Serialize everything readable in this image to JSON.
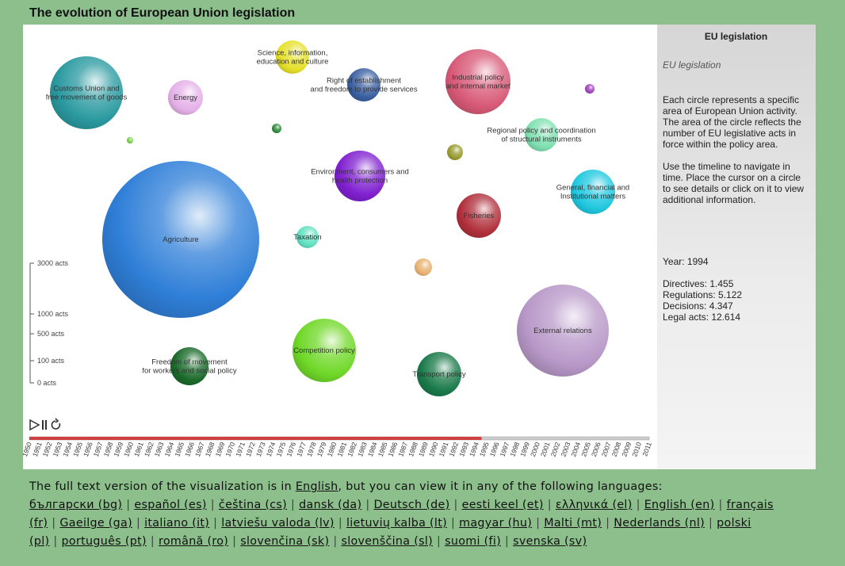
{
  "title": "The evolution of European Union legislation",
  "chart_data": {
    "type": "bubble",
    "year": 1994,
    "bubbles": [
      {
        "name": "Agriculture",
        "color": "#2f7fd8"
      },
      {
        "name": "Customs Union and free movement of goods",
        "color": "#2a9aa0"
      },
      {
        "name": "Energy",
        "color": "#e4b0e8"
      },
      {
        "name": "Science, information, education and culture",
        "color": "#e6e02a"
      },
      {
        "name": "Right of establishment and freedom to provide services",
        "color": "#3a5fa0"
      },
      {
        "name": "Industrial policy and internal market",
        "color": "#d85a78"
      },
      {
        "name": "Regional policy and coordination of structural instruments",
        "color": "#7fe0b0"
      },
      {
        "name": "Environment, consumers and health protection",
        "color": "#8020d0"
      },
      {
        "name": "Fisheries",
        "color": "#b0303c"
      },
      {
        "name": "General, financial and institutional matters",
        "color": "#20c8e0"
      },
      {
        "name": "Taxation",
        "color": "#60e0c0"
      },
      {
        "name": "Competition policy",
        "color": "#70d828"
      },
      {
        "name": "Freedom of movement for workers and social policy",
        "color": "#1a6a2a"
      },
      {
        "name": "Transport policy",
        "color": "#1a7a4a"
      },
      {
        "name": "External relations",
        "color": "#b898c8"
      },
      {
        "name": "",
        "color": "#a040c0"
      },
      {
        "name": "",
        "color": "#2a8a3a"
      },
      {
        "name": "",
        "color": "#70d040"
      },
      {
        "name": "",
        "color": "#989a30"
      },
      {
        "name": "",
        "color": "#e8b070"
      }
    ],
    "size_legend": [
      "3000 acts",
      "1000 acts",
      "500 acts",
      "100 acts",
      "0 acts"
    ],
    "timeline": {
      "start": 1950,
      "end": 2011,
      "current": 1994,
      "years": [
        "1950",
        "1951",
        "1952",
        "1953",
        "1954",
        "1955",
        "1956",
        "1957",
        "1958",
        "1959",
        "1960",
        "1961",
        "1962",
        "1963",
        "1964",
        "1965",
        "1966",
        "1967",
        "1968",
        "1969",
        "1970",
        "1971",
        "1972",
        "1973",
        "1974",
        "1975",
        "1976",
        "1977",
        "1978",
        "1979",
        "1980",
        "1981",
        "1982",
        "1983",
        "1984",
        "1985",
        "1986",
        "1987",
        "1988",
        "1989",
        "1990",
        "1991",
        "1992",
        "1993",
        "1994",
        "1995",
        "1996",
        "1997",
        "1998",
        "1999",
        "2000",
        "2001",
        "2002",
        "2003",
        "2004",
        "2005",
        "2006",
        "2007",
        "2008",
        "2009",
        "2010",
        "2011"
      ],
      "progress_color": "#d04040",
      "rest_color": "#cccccc"
    }
  },
  "side": {
    "title": "EU legislation",
    "subtitle": "EU legislation",
    "desc1": "Each circle represents a specific area of European Union activity. The area of the circle reflects the number of EU legislative acts in force within the policy area.",
    "desc2": "Use the timeline to navigate in time. Place the cursor on a circle to see details or click on it to view additional information.",
    "year": "Year: 1994",
    "directives": "Directives: 1.455",
    "regulations": "Regulations: 5.122",
    "decisions": "Decisions: 4.347",
    "legal_acts": "Legal acts: 12.614"
  },
  "footer": {
    "intro_pre": "The full text version of the visualization is in ",
    "intro_link": "English",
    "intro_post": ", but you can view it in any of the following languages:",
    "languages": [
      "български (bg)",
      "español (es)",
      "čeština (cs)",
      "dansk (da)",
      "Deutsch (de)",
      "eesti keel (et)",
      "ελληνικά (el)",
      "English (en)",
      "français (fr)",
      "Gaeilge (ga)",
      "italiano (it)",
      "latviešu valoda (lv)",
      "lietuvių kalba (lt)",
      "magyar (hu)",
      "Malti (mt)",
      "Nederlands (nl)",
      "polski (pl)",
      "português (pt)",
      "română (ro)",
      "slovenčina (sk)",
      "slovenščina (sl)",
      "suomi (fi)",
      "svenska (sv)"
    ]
  }
}
